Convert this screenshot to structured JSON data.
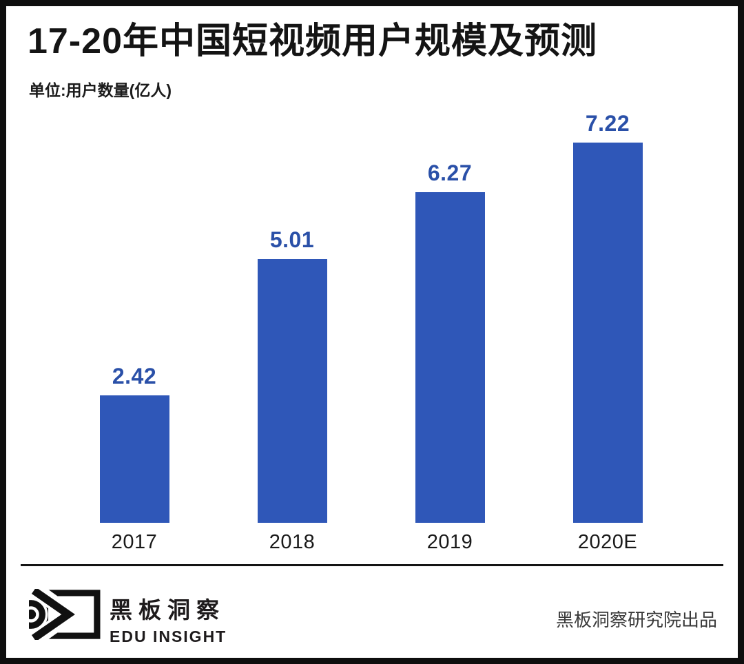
{
  "header": {
    "title": "17-20年中国短视频用户规模及预测",
    "unit_label": "单位:用户数量(亿人)"
  },
  "chart_data": {
    "type": "bar",
    "categories": [
      "2017",
      "2018",
      "2019",
      "2020E"
    ],
    "values": [
      2.42,
      5.01,
      6.27,
      7.22
    ],
    "value_labels": [
      "2.42",
      "5.01",
      "6.27",
      "7.22"
    ],
    "title": "17-20年中国短视频用户规模及预测",
    "xlabel": "",
    "ylabel": "用户数量(亿人)",
    "ylim": [
      0,
      8
    ],
    "grid": false,
    "legend": false,
    "bar_color": "#2f57b8",
    "value_label_color": "#2a50a8",
    "axis_label_color": "#1a1a1a"
  },
  "footer": {
    "logo": {
      "icon": "eye-logo-icon",
      "name_cn": "黑板洞察",
      "name_en": "EDU INSIGHT"
    },
    "credit": "黑板洞察研究院出品"
  }
}
